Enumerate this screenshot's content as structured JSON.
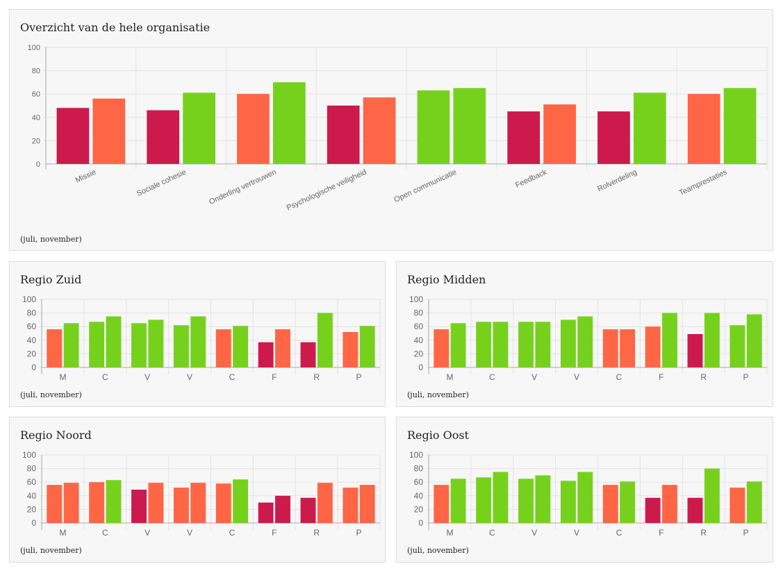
{
  "colors": {
    "red": "#cc1a4c",
    "orange": "#ff6645",
    "green": "#76d11d",
    "grid": "#e3e3e3",
    "axis": "#aaaaaa"
  },
  "panels": [
    {
      "title": "Overzicht van de hele organisatie",
      "footnote": "(juli, november)"
    },
    {
      "title": "Regio Zuid",
      "footnote": "(juli, november)"
    },
    {
      "title": "Regio Midden",
      "footnote": "(juli, november)"
    },
    {
      "title": "Regio Noord",
      "footnote": "(juli, november)"
    },
    {
      "title": "Regio Oost",
      "footnote": "(juli, november)"
    }
  ],
  "chart_data": [
    {
      "type": "bar",
      "title": "Overzicht van de hele organisatie",
      "categories": [
        "Missie",
        "Sociale cohesie",
        "Onderling vertrouwen",
        "Psychologische veiligheid",
        "Open communicatie",
        "Feedback",
        "Rolverdeling",
        "Teamprestaties"
      ],
      "series": [
        {
          "values": [
            48,
            46,
            60,
            50,
            63,
            45,
            45,
            60
          ],
          "colors": [
            "red",
            "red",
            "orange",
            "red",
            "green",
            "red",
            "red",
            "orange"
          ]
        },
        {
          "values": [
            56,
            61,
            70,
            57,
            65,
            51,
            61,
            65
          ],
          "colors": [
            "orange",
            "green",
            "green",
            "orange",
            "green",
            "orange",
            "green",
            "green"
          ]
        }
      ],
      "ylim": [
        0,
        100
      ],
      "yticks": [
        0,
        20,
        40,
        60,
        80,
        100
      ],
      "grid": true,
      "xlabels_rotated": true
    },
    {
      "type": "bar",
      "title": "Regio Zuid",
      "categories": [
        "M",
        "C",
        "V",
        "V",
        "C",
        "F",
        "R",
        "P"
      ],
      "series": [
        {
          "values": [
            56,
            67,
            65,
            62,
            56,
            37,
            37,
            52
          ],
          "colors": [
            "orange",
            "green",
            "green",
            "green",
            "orange",
            "red",
            "red",
            "orange"
          ]
        },
        {
          "values": [
            65,
            75,
            70,
            75,
            61,
            56,
            80,
            61
          ],
          "colors": [
            "green",
            "green",
            "green",
            "green",
            "green",
            "orange",
            "green",
            "green"
          ]
        }
      ],
      "ylim": [
        0,
        100
      ],
      "yticks": [
        0,
        20,
        40,
        60,
        80,
        100
      ],
      "grid": true
    },
    {
      "type": "bar",
      "title": "Regio Midden",
      "categories": [
        "M",
        "C",
        "V",
        "V",
        "C",
        "F",
        "R",
        "P"
      ],
      "series": [
        {
          "values": [
            56,
            67,
            67,
            70,
            56,
            60,
            49,
            62
          ],
          "colors": [
            "orange",
            "green",
            "green",
            "green",
            "orange",
            "orange",
            "red",
            "green"
          ]
        },
        {
          "values": [
            65,
            67,
            67,
            75,
            56,
            80,
            80,
            78
          ],
          "colors": [
            "green",
            "green",
            "green",
            "green",
            "orange",
            "green",
            "green",
            "green"
          ]
        }
      ],
      "ylim": [
        0,
        100
      ],
      "yticks": [
        0,
        20,
        40,
        60,
        80,
        100
      ],
      "grid": true
    },
    {
      "type": "bar",
      "title": "Regio Noord",
      "categories": [
        "M",
        "C",
        "V",
        "V",
        "C",
        "F",
        "R",
        "P"
      ],
      "series": [
        {
          "values": [
            56,
            60,
            49,
            52,
            58,
            30,
            37,
            52
          ],
          "colors": [
            "orange",
            "orange",
            "red",
            "orange",
            "orange",
            "red",
            "red",
            "orange"
          ]
        },
        {
          "values": [
            59,
            63,
            59,
            59,
            64,
            40,
            59,
            56
          ],
          "colors": [
            "orange",
            "green",
            "orange",
            "orange",
            "green",
            "red",
            "orange",
            "orange"
          ]
        }
      ],
      "ylim": [
        0,
        100
      ],
      "yticks": [
        0,
        20,
        40,
        60,
        80,
        100
      ],
      "grid": true
    },
    {
      "type": "bar",
      "title": "Regio Oost",
      "categories": [
        "M",
        "C",
        "V",
        "V",
        "C",
        "F",
        "R",
        "P"
      ],
      "series": [
        {
          "values": [
            56,
            67,
            65,
            62,
            56,
            37,
            37,
            52
          ],
          "colors": [
            "orange",
            "green",
            "green",
            "green",
            "orange",
            "red",
            "red",
            "orange"
          ]
        },
        {
          "values": [
            65,
            75,
            70,
            75,
            61,
            56,
            80,
            61
          ],
          "colors": [
            "green",
            "green",
            "green",
            "green",
            "green",
            "orange",
            "green",
            "green"
          ]
        }
      ],
      "ylim": [
        0,
        100
      ],
      "yticks": [
        0,
        20,
        40,
        60,
        80,
        100
      ],
      "grid": true
    }
  ]
}
